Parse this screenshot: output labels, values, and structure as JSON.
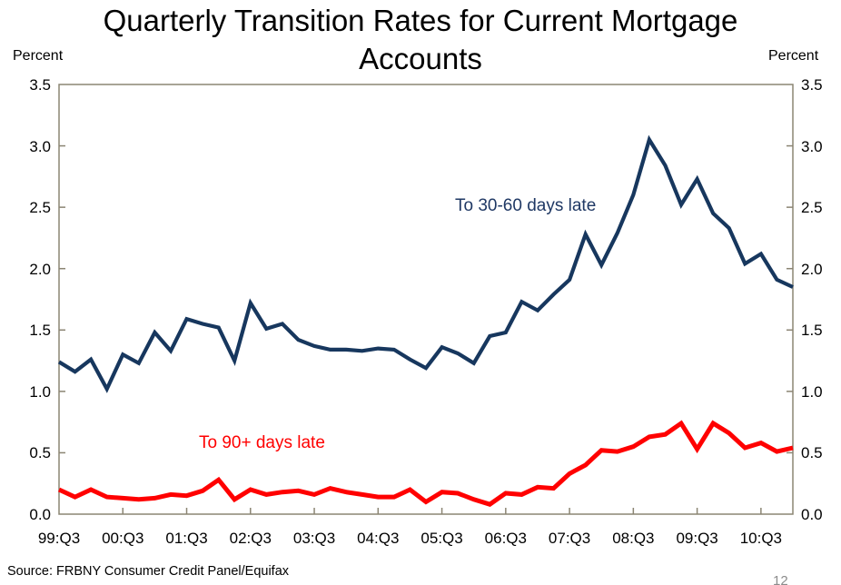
{
  "page_number": "12",
  "source": "Source: FRBNY Consumer Credit Panel/Equifax",
  "colors": {
    "axis": "#8b8573",
    "title_text": "#000000",
    "navy_line": "#17375E",
    "navy_label_text": "#1F3864",
    "red_line": "#FF0000",
    "page_number_gray": "#8c8c8c"
  },
  "chart_data": {
    "type": "line",
    "title": "Quarterly Transition Rates for Current Mortgage Accounts",
    "ylabel_left": "Percent",
    "ylabel_right": "Percent",
    "xlabel": "",
    "ylim": [
      0.0,
      3.5
    ],
    "ytick_step": 0.5,
    "yticks": [
      "3.5",
      "3.0",
      "2.5",
      "2.0",
      "1.5",
      "1.0",
      "0.5",
      "0.0"
    ],
    "grid": false,
    "legend_position": "inline-annotations",
    "x": [
      "99:Q3",
      "99:Q4",
      "00:Q1",
      "00:Q2",
      "00:Q3",
      "00:Q4",
      "01:Q1",
      "01:Q2",
      "01:Q3",
      "01:Q4",
      "02:Q1",
      "02:Q2",
      "02:Q3",
      "02:Q4",
      "03:Q1",
      "03:Q2",
      "03:Q3",
      "03:Q4",
      "04:Q1",
      "04:Q2",
      "04:Q3",
      "04:Q4",
      "05:Q1",
      "05:Q2",
      "05:Q3",
      "05:Q4",
      "06:Q1",
      "06:Q2",
      "06:Q3",
      "06:Q4",
      "07:Q1",
      "07:Q2",
      "07:Q3",
      "07:Q4",
      "08:Q1",
      "08:Q2",
      "08:Q3",
      "08:Q4",
      "09:Q1",
      "09:Q2",
      "09:Q3",
      "09:Q4",
      "10:Q1",
      "10:Q2",
      "10:Q3",
      "10:Q4",
      "11:Q1"
    ],
    "xtick_labels": [
      "99:Q3",
      "00:Q3",
      "01:Q3",
      "02:Q3",
      "03:Q3",
      "04:Q3",
      "05:Q3",
      "06:Q3",
      "07:Q3",
      "08:Q3",
      "09:Q3",
      "10:Q3"
    ],
    "series": [
      {
        "name": "To 30-60 days late",
        "color": "#17375E",
        "stroke_width": 4.2,
        "values": [
          1.24,
          1.16,
          1.26,
          1.02,
          1.3,
          1.23,
          1.48,
          1.33,
          1.59,
          1.55,
          1.52,
          1.25,
          1.72,
          1.51,
          1.55,
          1.42,
          1.37,
          1.34,
          1.34,
          1.33,
          1.35,
          1.34,
          1.26,
          1.19,
          1.36,
          1.31,
          1.23,
          1.45,
          1.48,
          1.73,
          1.66,
          1.79,
          1.91,
          2.28,
          2.03,
          2.29,
          2.6,
          3.05,
          2.84,
          2.52,
          2.73,
          2.45,
          2.33,
          2.04,
          2.12,
          1.91,
          1.85
        ]
      },
      {
        "name": "To 90+ days late",
        "color": "#FF0000",
        "stroke_width": 5,
        "values": [
          0.2,
          0.14,
          0.2,
          0.14,
          0.13,
          0.12,
          0.13,
          0.16,
          0.15,
          0.19,
          0.28,
          0.12,
          0.2,
          0.16,
          0.18,
          0.19,
          0.16,
          0.21,
          0.18,
          0.16,
          0.14,
          0.14,
          0.2,
          0.1,
          0.18,
          0.17,
          0.12,
          0.08,
          0.17,
          0.16,
          0.22,
          0.21,
          0.33,
          0.4,
          0.52,
          0.51,
          0.55,
          0.63,
          0.65,
          0.74,
          0.53,
          0.74,
          0.66,
          0.54,
          0.58,
          0.51,
          0.54
        ]
      }
    ],
    "annotations": [
      {
        "text": "To 30-60 days late",
        "series": 0
      },
      {
        "text": "To 90+ days late",
        "series": 1
      }
    ]
  }
}
